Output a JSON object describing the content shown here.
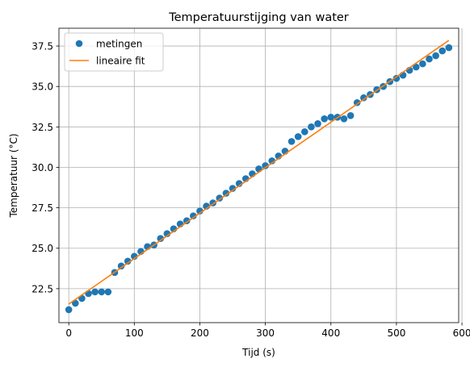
{
  "chart_data": {
    "type": "scatter",
    "title": "Temperatuurstijging van water",
    "xlabel": "Tijd (s)",
    "ylabel": "Temperatuur (°C)",
    "xlim": [
      -15,
      595
    ],
    "ylim": [
      20.4,
      38.6
    ],
    "xticks": [
      0,
      100,
      200,
      300,
      400,
      500,
      600
    ],
    "yticks": [
      22.5,
      25.0,
      27.5,
      30.0,
      32.5,
      35.0,
      37.5
    ],
    "xtick_labels": [
      "0",
      "100",
      "200",
      "300",
      "400",
      "500",
      "600"
    ],
    "ytick_labels": [
      "22.5",
      "25.0",
      "27.5",
      "30.0",
      "32.5",
      "35.0",
      "37.5"
    ],
    "grid": true,
    "legend_position": "upper-left",
    "series": [
      {
        "name": "metingen",
        "kind": "markers",
        "color": "#1f77b4",
        "x": [
          0,
          10,
          20,
          30,
          40,
          50,
          60,
          70,
          80,
          90,
          100,
          110,
          120,
          130,
          140,
          150,
          160,
          170,
          180,
          190,
          200,
          210,
          220,
          230,
          240,
          250,
          260,
          270,
          280,
          290,
          300,
          310,
          320,
          330,
          340,
          350,
          360,
          370,
          380,
          390,
          400,
          410,
          420,
          430,
          440,
          450,
          460,
          470,
          480,
          490,
          500,
          510,
          520,
          530,
          540,
          550,
          560,
          570,
          580
        ],
        "y": [
          21.2,
          21.6,
          21.9,
          22.2,
          22.3,
          22.3,
          22.3,
          23.5,
          23.9,
          24.2,
          24.5,
          24.8,
          25.1,
          25.2,
          25.6,
          25.9,
          26.2,
          26.5,
          26.7,
          27.0,
          27.3,
          27.6,
          27.8,
          28.1,
          28.4,
          28.7,
          29.0,
          29.3,
          29.6,
          29.9,
          30.1,
          30.4,
          30.7,
          31.0,
          31.6,
          31.9,
          32.2,
          32.5,
          32.7,
          33.0,
          33.1,
          33.1,
          33.0,
          33.2,
          34.0,
          34.3,
          34.5,
          34.8,
          35.0,
          35.3,
          35.5,
          35.7,
          36.0,
          36.2,
          36.4,
          36.7,
          36.9,
          37.2,
          37.4
        ]
      },
      {
        "name": "lineaire fit",
        "kind": "line",
        "color": "#ff7f0e",
        "x": [
          0,
          580
        ],
        "y": [
          21.55,
          37.85
        ]
      }
    ]
  }
}
